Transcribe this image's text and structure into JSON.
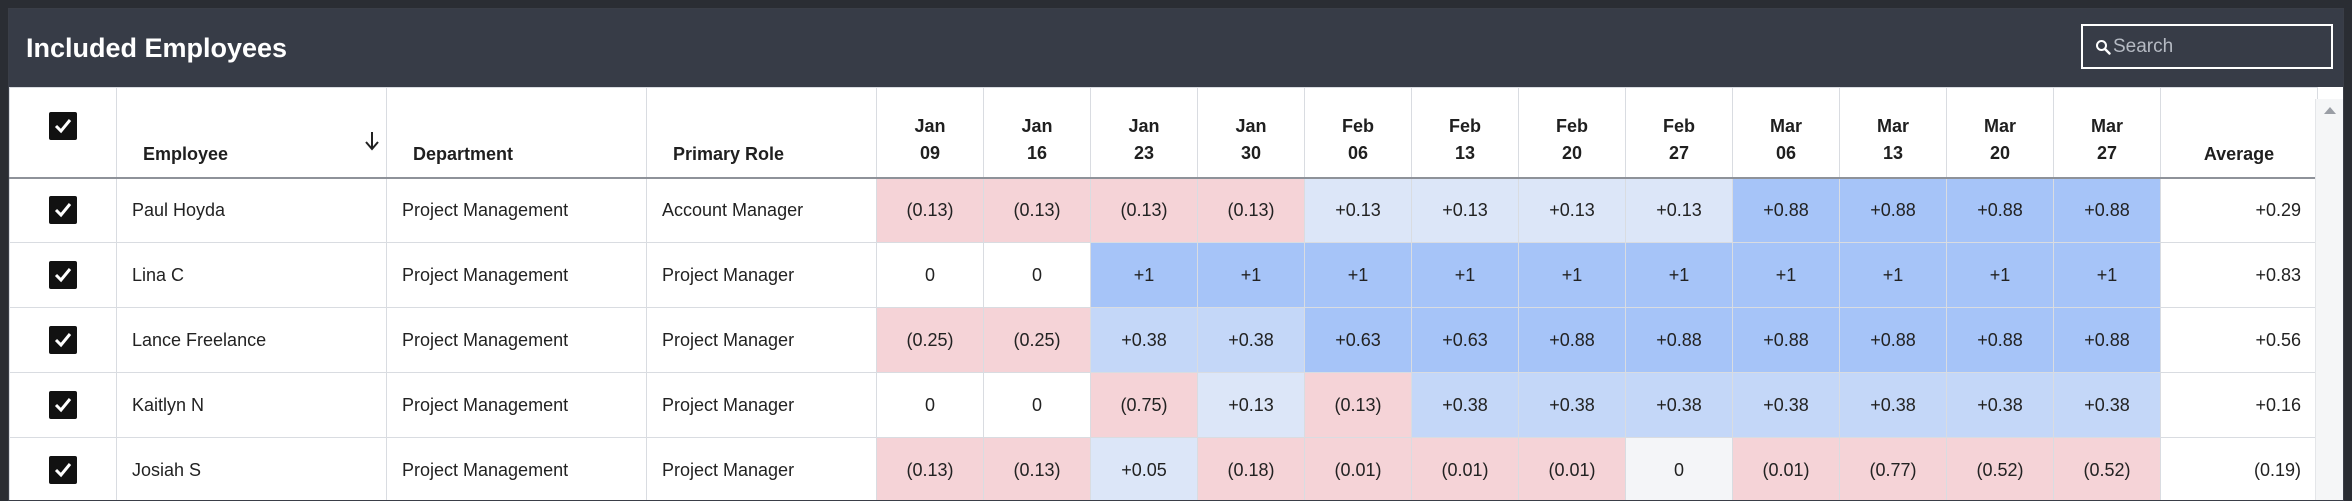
{
  "panel": {
    "title": "Included Employees"
  },
  "search": {
    "placeholder": "Search",
    "value": ""
  },
  "columns": {
    "employee": "Employee",
    "department": "Department",
    "primary_role": "Primary Role",
    "dates": [
      {
        "month": "Jan",
        "day": "09"
      },
      {
        "month": "Jan",
        "day": "16"
      },
      {
        "month": "Jan",
        "day": "23"
      },
      {
        "month": "Jan",
        "day": "30"
      },
      {
        "month": "Feb",
        "day": "06"
      },
      {
        "month": "Feb",
        "day": "13"
      },
      {
        "month": "Feb",
        "day": "20"
      },
      {
        "month": "Feb",
        "day": "27"
      },
      {
        "month": "Mar",
        "day": "06"
      },
      {
        "month": "Mar",
        "day": "13"
      },
      {
        "month": "Mar",
        "day": "20"
      },
      {
        "month": "Mar",
        "day": "27"
      }
    ],
    "average": "Average"
  },
  "colors": {
    "negative": "#f5d3d7",
    "neutral": "#ffffff",
    "pos_light": "#dce6f8",
    "pos_mid": "#c4d7f8",
    "pos_strong": "#a6c4f8",
    "zero_tint": "#f4f5f8"
  },
  "rows": [
    {
      "checked": true,
      "employee": "Paul Hoyda",
      "department": "Project Management",
      "role": "Account Manager",
      "values": [
        "(0.13)",
        "(0.13)",
        "(0.13)",
        "(0.13)",
        "+0.13",
        "+0.13",
        "+0.13",
        "+0.13",
        "+0.88",
        "+0.88",
        "+0.88",
        "+0.88"
      ],
      "tones": [
        "negative",
        "negative",
        "negative",
        "negative",
        "pos_light",
        "pos_light",
        "pos_light",
        "pos_light",
        "pos_strong",
        "pos_strong",
        "pos_strong",
        "pos_strong"
      ],
      "average": "+0.29"
    },
    {
      "checked": true,
      "employee": "Lina C",
      "department": "Project Management",
      "role": "Project Manager",
      "values": [
        "0",
        "0",
        "+1",
        "+1",
        "+1",
        "+1",
        "+1",
        "+1",
        "+1",
        "+1",
        "+1",
        "+1"
      ],
      "tones": [
        "neutral",
        "neutral",
        "pos_strong",
        "pos_strong",
        "pos_strong",
        "pos_strong",
        "pos_strong",
        "pos_strong",
        "pos_strong",
        "pos_strong",
        "pos_strong",
        "pos_strong"
      ],
      "average": "+0.83"
    },
    {
      "checked": true,
      "employee": "Lance Freelance",
      "department": "Project Management",
      "role": "Project Manager",
      "values": [
        "(0.25)",
        "(0.25)",
        "+0.38",
        "+0.38",
        "+0.63",
        "+0.63",
        "+0.88",
        "+0.88",
        "+0.88",
        "+0.88",
        "+0.88",
        "+0.88"
      ],
      "tones": [
        "negative",
        "negative",
        "pos_mid",
        "pos_mid",
        "pos_strong",
        "pos_strong",
        "pos_strong",
        "pos_strong",
        "pos_strong",
        "pos_strong",
        "pos_strong",
        "pos_strong"
      ],
      "average": "+0.56"
    },
    {
      "checked": true,
      "employee": "Kaitlyn N",
      "department": "Project Management",
      "role": "Project Manager",
      "values": [
        "0",
        "0",
        "(0.75)",
        "+0.13",
        "(0.13)",
        "+0.38",
        "+0.38",
        "+0.38",
        "+0.38",
        "+0.38",
        "+0.38",
        "+0.38"
      ],
      "tones": [
        "neutral",
        "neutral",
        "negative",
        "pos_light",
        "negative",
        "pos_mid",
        "pos_mid",
        "pos_mid",
        "pos_mid",
        "pos_mid",
        "pos_mid",
        "pos_mid"
      ],
      "average": "+0.16"
    },
    {
      "checked": true,
      "employee": "Josiah S",
      "department": "Project Management",
      "role": "Project Manager",
      "values": [
        "(0.13)",
        "(0.13)",
        "+0.05",
        "(0.18)",
        "(0.01)",
        "(0.01)",
        "(0.01)",
        "0",
        "(0.01)",
        "(0.77)",
        "(0.52)",
        "(0.52)"
      ],
      "tones": [
        "negative",
        "negative",
        "pos_light",
        "negative",
        "negative",
        "negative",
        "negative",
        "zero_tint",
        "negative",
        "negative",
        "negative",
        "negative"
      ],
      "average": "(0.19)"
    }
  ]
}
